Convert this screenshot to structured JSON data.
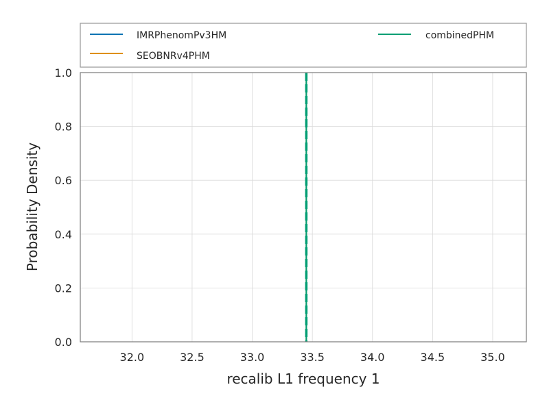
{
  "chart_data": {
    "type": "line",
    "title": "",
    "xlabel": "recalib L1 frequency 1",
    "ylabel": "Probability Density",
    "xlim": [
      31.57,
      35.28
    ],
    "ylim": [
      0.0,
      1.0
    ],
    "x_ticks": [
      "32.0",
      "32.5",
      "33.0",
      "33.5",
      "34.0",
      "34.5",
      "35.0"
    ],
    "y_ticks": [
      "0.0",
      "0.2",
      "0.4",
      "0.6",
      "0.8",
      "1.0"
    ],
    "grid": true,
    "legend_placement": "top",
    "series": [
      {
        "name": "IMRPhenomPv3HM",
        "color": "#0173b2",
        "x": [
          33.45,
          33.45
        ],
        "y": [
          0.0,
          1.0
        ]
      },
      {
        "name": "SEOBNRv4PHM",
        "color": "#de8f05",
        "x": [
          33.45,
          33.45
        ],
        "y": [
          0.0,
          1.0
        ]
      },
      {
        "name": "combinedPHM",
        "color": "#029e73",
        "x": [
          33.45,
          33.45
        ],
        "y": [
          0.0,
          1.0
        ]
      }
    ],
    "vlines": [
      {
        "x": 33.45,
        "color": "#029e73",
        "style": "dashed"
      }
    ]
  }
}
